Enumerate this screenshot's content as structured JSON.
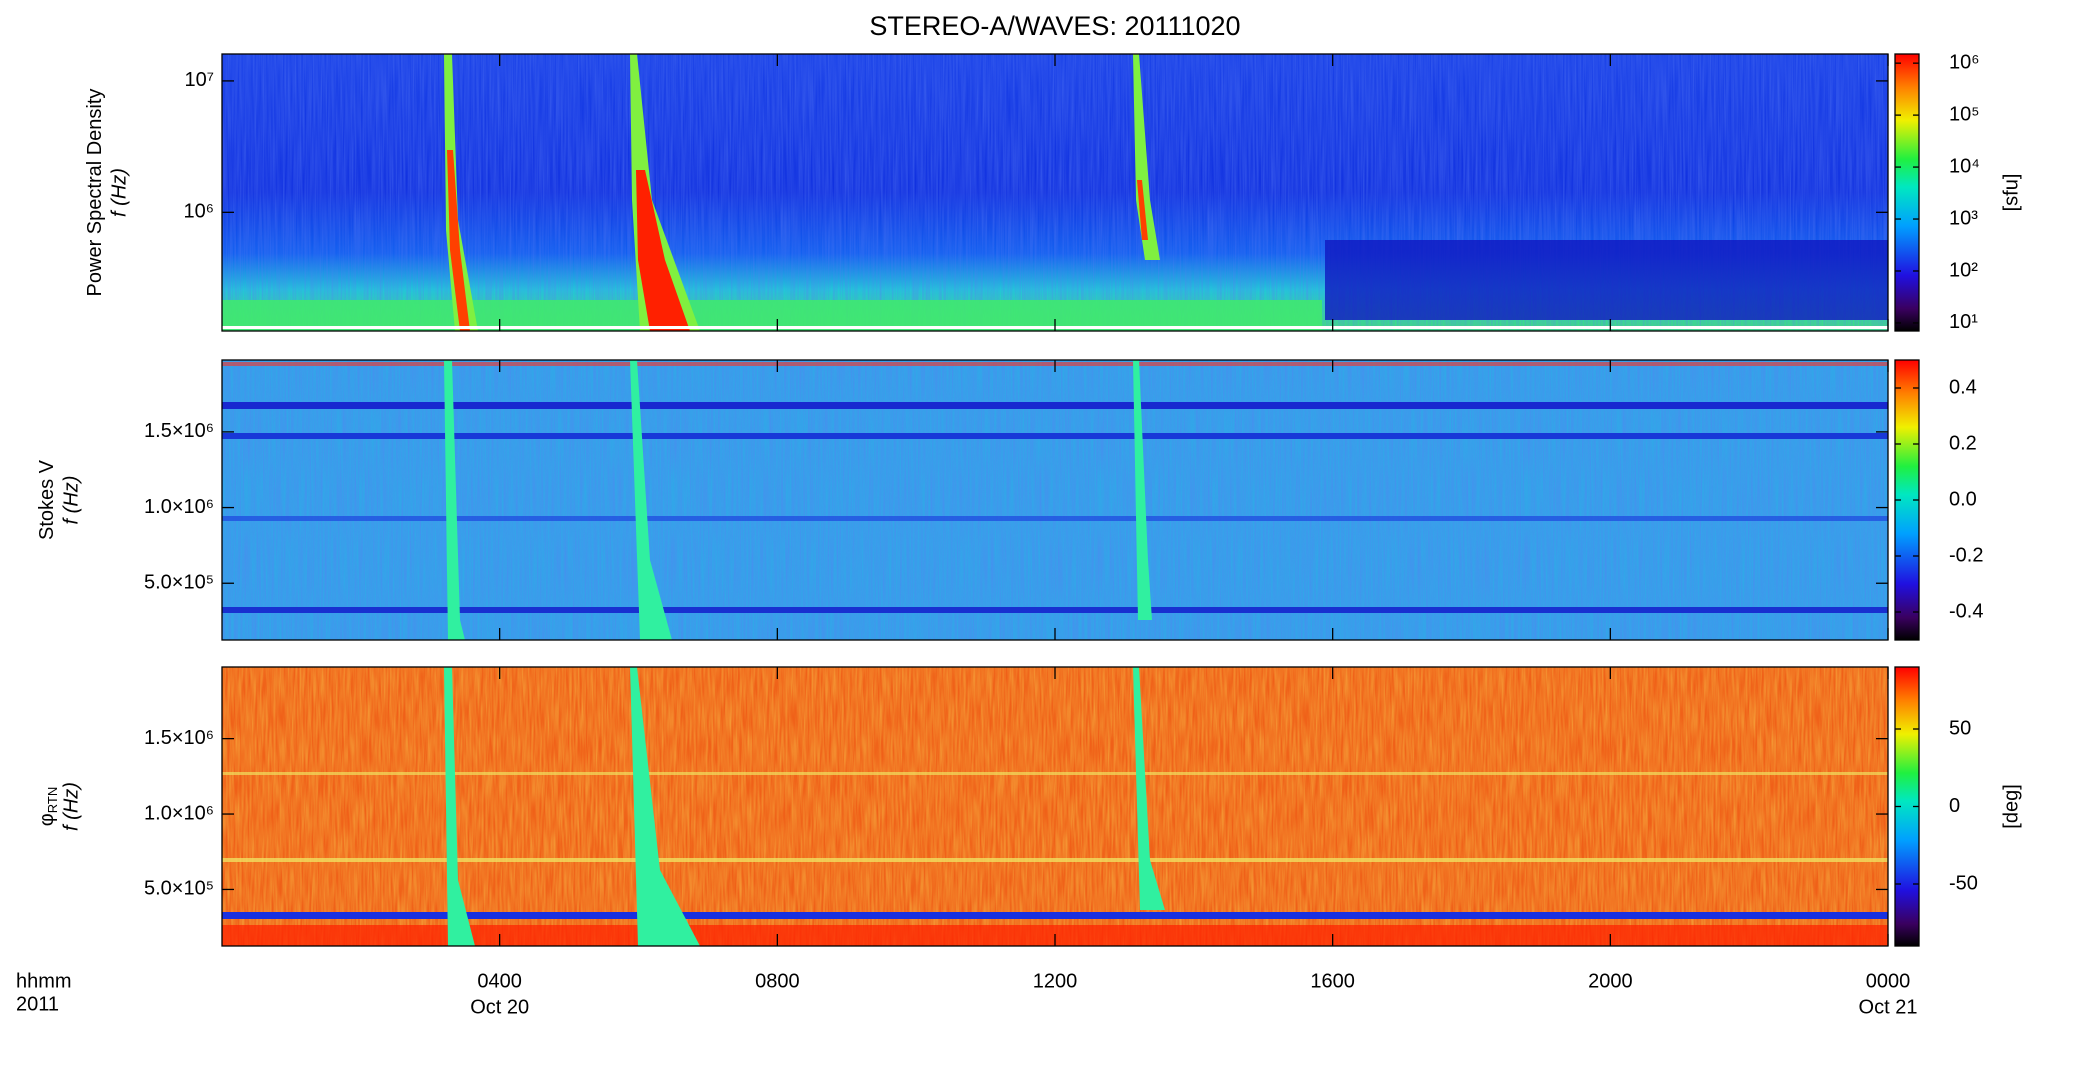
{
  "chart_data": [
    {
      "type": "spectrogram",
      "title": "STEREO-A/WAVES: 20111020",
      "ylabel": "Power Spectral Density",
      "ylabel_unit": "f (Hz)",
      "ylog": true,
      "ylim": [
        125000,
        16025000
      ],
      "yticks": [
        {
          "value": 1000000,
          "label": "10⁶"
        },
        {
          "value": 10000000,
          "label": "10⁷"
        }
      ],
      "clog": true,
      "clim": [
        7,
        1500000
      ],
      "cticks": [
        {
          "value": 10,
          "label": "10¹"
        },
        {
          "value": 100,
          "label": "10²"
        },
        {
          "value": 1000,
          "label": "10³"
        },
        {
          "value": 10000,
          "label": "10⁴"
        },
        {
          "value": 100000,
          "label": "10⁵"
        },
        {
          "value": 1000000,
          "label": "10⁶"
        }
      ],
      "colorbar_label": "[sfu]"
    },
    {
      "type": "spectrogram",
      "ylabel": "Stokes V",
      "ylabel_unit": "f (Hz)",
      "ylog": false,
      "ylim": [
        125000,
        1975000
      ],
      "yticks": [
        {
          "value": 500000,
          "label": "5.0×10⁵"
        },
        {
          "value": 1000000,
          "label": "1.0×10⁶"
        },
        {
          "value": 1500000,
          "label": "1.5×10⁶"
        }
      ],
      "clog": false,
      "clim": [
        -0.5,
        0.5
      ],
      "cticks": [
        -0.4,
        -0.2,
        {
          "value": 0,
          "label": "0.0"
        },
        0.2,
        0.4
      ]
    },
    {
      "type": "spectrogram",
      "ylabel": "φ",
      "ylabel_sub": "RTN",
      "ylabel_unit": "f (Hz)",
      "ylog": false,
      "ylim": [
        125000,
        1975000
      ],
      "yticks": [
        {
          "value": 500000,
          "label": "5.0×10⁵"
        },
        {
          "value": 1000000,
          "label": "1.0×10⁶"
        },
        {
          "value": 1500000,
          "label": "1.5×10⁶"
        }
      ],
      "clog": false,
      "clim": [
        -90,
        90
      ],
      "cticks": [
        -50,
        0,
        50
      ],
      "colorbar_label": "[deg]",
      "xlabel": "hhmm",
      "xlabel_year": "2011",
      "xlim": [
        0,
        24
      ],
      "xticks": [
        {
          "value": 4,
          "label": "0400"
        },
        {
          "value": 8,
          "label": "0800"
        },
        {
          "value": 12,
          "label": "1200"
        },
        {
          "value": 16,
          "label": "1600"
        },
        {
          "value": 20,
          "label": "2000"
        },
        {
          "value": 24,
          "label": "0000"
        }
      ],
      "xtick_dates": [
        {
          "value": 4,
          "label": "Oct 20"
        },
        {
          "value": 24,
          "label": "Oct 21"
        }
      ]
    }
  ]
}
